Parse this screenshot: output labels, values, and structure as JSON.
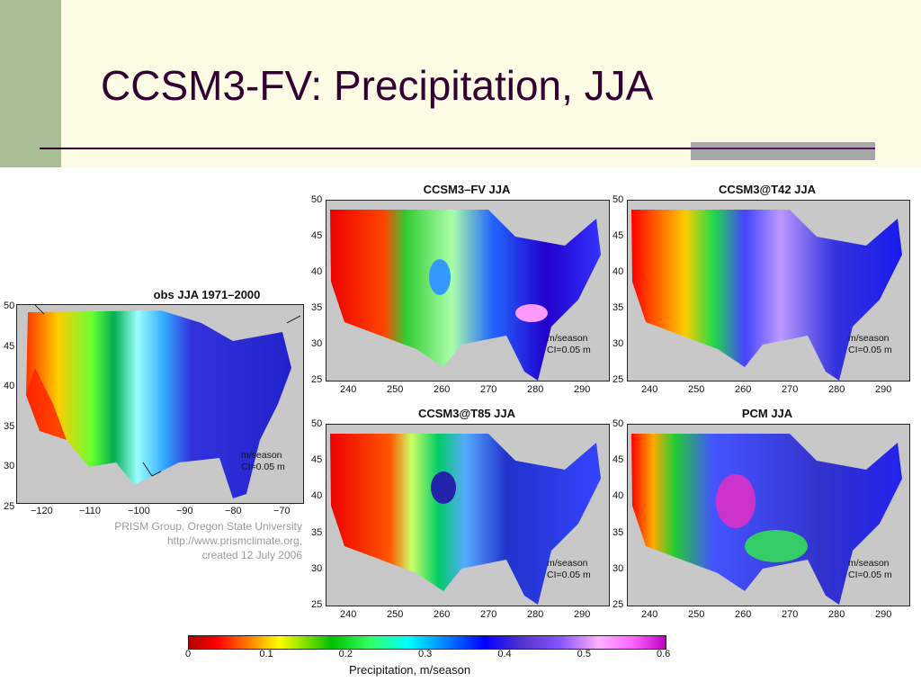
{
  "slide": {
    "title": "CCSM3-FV: Precipitation, JJA",
    "accent_color": "#330033",
    "sidebar_color": "#a8bf95",
    "header_bg": "#fdfbe4"
  },
  "panels": {
    "obs": {
      "title": "obs JJA 1971–2000",
      "note1": "m/season",
      "note2": "CI=0.05 m"
    },
    "fv": {
      "title": "CCSM3–FV JJA",
      "note1": "m/season",
      "note2": "CI=0.05 m"
    },
    "t42": {
      "title": "CCSM3@T42 JJA",
      "note1": "m/season",
      "note2": "CI=0.05 m"
    },
    "t85": {
      "title": "CCSM3@T85 JJA",
      "note1": "m/season",
      "note2": "CI=0.05 m"
    },
    "pcm": {
      "title": "PCM JJA",
      "note1": "m/season",
      "note2": "CI=0.05 m"
    }
  },
  "axes": {
    "lat_ticks": [
      "50",
      "45",
      "40",
      "35",
      "30",
      "25"
    ],
    "obs_lon_ticks": [
      "−120",
      "−110",
      "−100",
      "−90",
      "−80",
      "−70"
    ],
    "model_lon_ticks": [
      "240",
      "250",
      "260",
      "270",
      "280",
      "290"
    ]
  },
  "credit": {
    "line1": "PRISM Group, Oregon State University",
    "line2": "http://www.prismclimate.org,",
    "line3": "created 12 July 2006"
  },
  "colorbar": {
    "title": "Precipitation, m/season",
    "ticks": [
      "0",
      "0.1",
      "0.2",
      "0.3",
      "0.4",
      "0.5",
      "0.6"
    ]
  }
}
